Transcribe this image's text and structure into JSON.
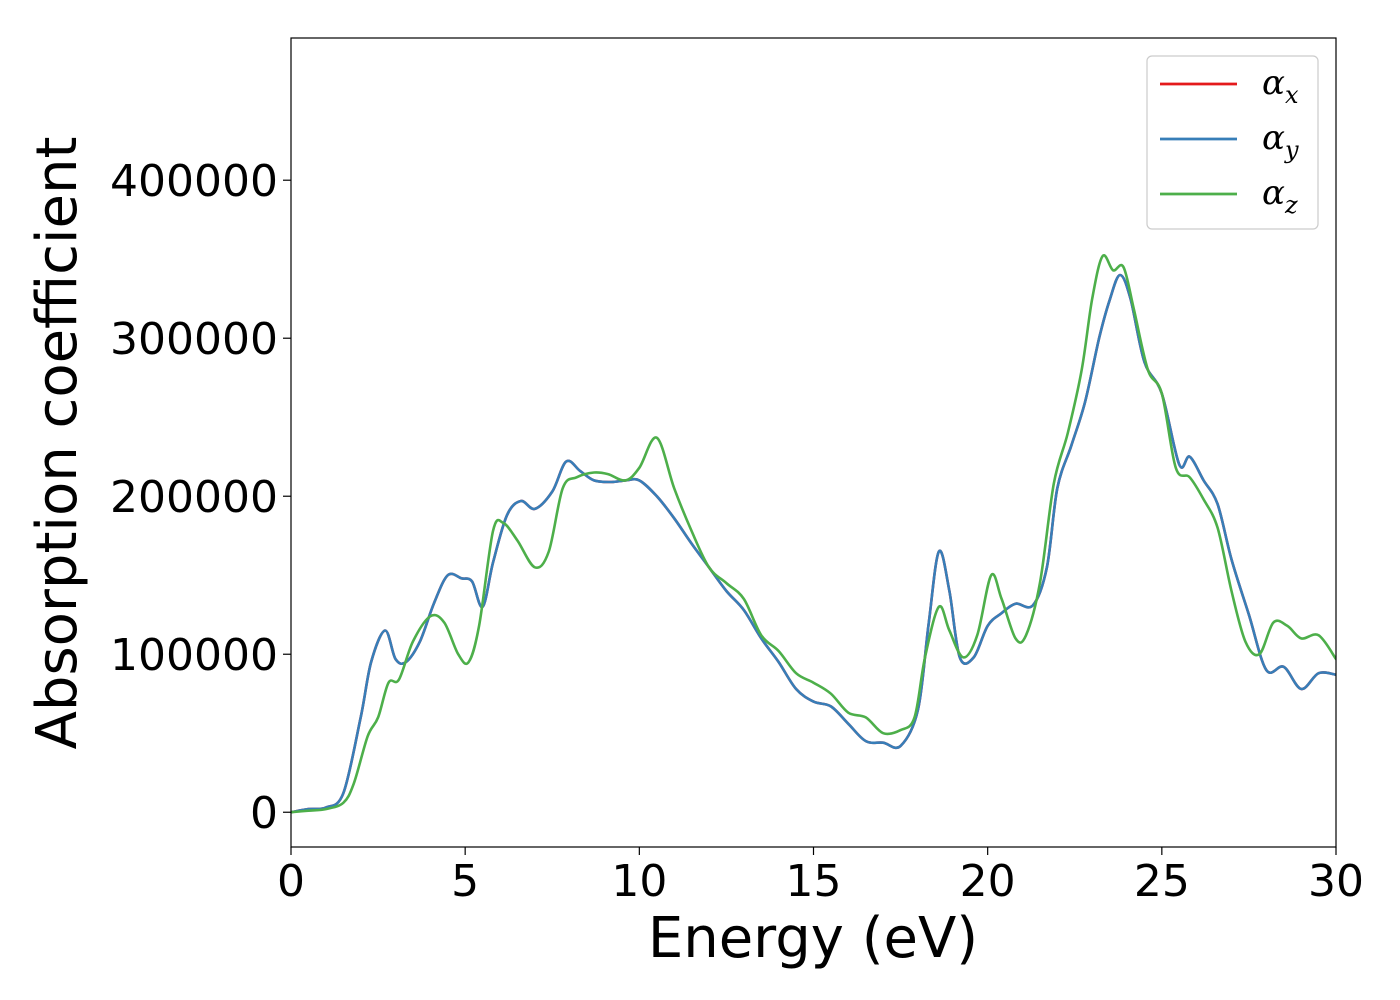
{
  "chart_data": {
    "type": "line",
    "title": "",
    "xlabel": "Energy (eV)",
    "ylabel": "Absorption coefficient",
    "xlim": [
      0,
      30
    ],
    "ylim": [
      -22000,
      490000
    ],
    "xticks": [
      0,
      5,
      10,
      15,
      20,
      25,
      30
    ],
    "yticks": [
      0,
      100000,
      200000,
      300000,
      400000
    ],
    "xtick_labels": [
      "0",
      "5",
      "10",
      "15",
      "20",
      "25",
      "30"
    ],
    "ytick_labels": [
      "0",
      "100000",
      "200000",
      "300000",
      "400000"
    ],
    "grid": false,
    "legend_position": "top-right",
    "legend": [
      {
        "base": "α",
        "sub": "x",
        "color": "#e41a1c"
      },
      {
        "base": "α",
        "sub": "y",
        "color": "#377eb8"
      },
      {
        "base": "α",
        "sub": "z",
        "color": "#4daf4a"
      }
    ],
    "series": [
      {
        "name": "αx",
        "color": "#e41a1c",
        "x": [
          0,
          0.5,
          1,
          1.5,
          2,
          2.3,
          2.7,
          3,
          3.3,
          3.7,
          4.1,
          4.5,
          4.9,
          5.2,
          5.5,
          5.8,
          6.2,
          6.6,
          7,
          7.5,
          7.9,
          8.3,
          8.7,
          9.2,
          9.6,
          10,
          10.5,
          11,
          11.5,
          12,
          12.5,
          13,
          13.5,
          14,
          14.5,
          15,
          15.5,
          16,
          16.5,
          17,
          17.5,
          18,
          18.3,
          18.6,
          18.9,
          19.2,
          19.6,
          20,
          20.4,
          20.8,
          21.3,
          21.7,
          22,
          22.4,
          22.8,
          23.2,
          23.5,
          23.8,
          24.1,
          24.5,
          25,
          25.5,
          25.8,
          26.2,
          26.6,
          27,
          27.5,
          28,
          28.5,
          29,
          29.5,
          30
        ],
        "y": [
          0,
          2000,
          3000,
          12000,
          60000,
          95000,
          115000,
          97000,
          95000,
          108000,
          132000,
          150000,
          148000,
          146000,
          130000,
          158000,
          188000,
          197000,
          192000,
          203000,
          222000,
          216000,
          210000,
          209000,
          210000,
          210000,
          200000,
          186000,
          170000,
          155000,
          140000,
          128000,
          110000,
          95000,
          78000,
          70000,
          67000,
          56000,
          45000,
          44000,
          42000,
          65000,
          118000,
          165000,
          140000,
          98000,
          98000,
          118000,
          126000,
          132000,
          131000,
          155000,
          205000,
          232000,
          260000,
          300000,
          324000,
          340000,
          325000,
          285000,
          265000,
          220000,
          225000,
          210000,
          195000,
          160000,
          125000,
          90000,
          92000,
          78000,
          88000,
          87000
        ]
      },
      {
        "name": "αy",
        "color": "#377eb8",
        "x": [
          0,
          0.5,
          1,
          1.5,
          2,
          2.3,
          2.7,
          3,
          3.3,
          3.7,
          4.1,
          4.5,
          4.9,
          5.2,
          5.5,
          5.8,
          6.2,
          6.6,
          7,
          7.5,
          7.9,
          8.3,
          8.7,
          9.2,
          9.6,
          10,
          10.5,
          11,
          11.5,
          12,
          12.5,
          13,
          13.5,
          14,
          14.5,
          15,
          15.5,
          16,
          16.5,
          17,
          17.5,
          18,
          18.3,
          18.6,
          18.9,
          19.2,
          19.6,
          20,
          20.4,
          20.8,
          21.3,
          21.7,
          22,
          22.4,
          22.8,
          23.2,
          23.5,
          23.8,
          24.1,
          24.5,
          25,
          25.5,
          25.8,
          26.2,
          26.6,
          27,
          27.5,
          28,
          28.5,
          29,
          29.5,
          30
        ],
        "y": [
          0,
          2000,
          3000,
          12000,
          60000,
          95000,
          115000,
          97000,
          95000,
          108000,
          132000,
          150000,
          148000,
          146000,
          130000,
          158000,
          188000,
          197000,
          192000,
          203000,
          222000,
          216000,
          210000,
          209000,
          210000,
          210000,
          200000,
          186000,
          170000,
          155000,
          140000,
          128000,
          110000,
          95000,
          78000,
          70000,
          67000,
          56000,
          45000,
          44000,
          42000,
          65000,
          118000,
          165000,
          140000,
          98000,
          98000,
          118000,
          126000,
          132000,
          131000,
          155000,
          205000,
          232000,
          260000,
          300000,
          324000,
          340000,
          325000,
          285000,
          265000,
          220000,
          225000,
          210000,
          195000,
          160000,
          125000,
          90000,
          92000,
          78000,
          88000,
          87000
        ]
      },
      {
        "name": "αz",
        "color": "#4daf4a",
        "x": [
          0,
          0.5,
          1,
          1.5,
          1.8,
          2.2,
          2.5,
          2.8,
          3.1,
          3.5,
          4,
          4.4,
          4.8,
          5.1,
          5.4,
          5.8,
          6.1,
          6.5,
          7,
          7.4,
          7.8,
          8.2,
          8.7,
          9.1,
          9.6,
          10,
          10.5,
          11,
          11.5,
          12,
          12.5,
          13,
          13.5,
          14,
          14.5,
          15,
          15.5,
          16,
          16.5,
          17,
          17.5,
          17.9,
          18.2,
          18.6,
          18.9,
          19.3,
          19.7,
          20.1,
          20.4,
          20.8,
          21.1,
          21.5,
          21.9,
          22.3,
          22.7,
          23,
          23.3,
          23.6,
          23.9,
          24.2,
          24.6,
          25,
          25.4,
          25.8,
          26.2,
          26.6,
          27,
          27.4,
          27.8,
          28.2,
          28.6,
          29,
          29.5,
          30
        ],
        "y": [
          0,
          1000,
          2000,
          6000,
          18000,
          48000,
          60000,
          82000,
          84000,
          108000,
          124000,
          120000,
          100000,
          95000,
          118000,
          178000,
          183000,
          172000,
          155000,
          165000,
          205000,
          212000,
          215000,
          214000,
          210000,
          218000,
          237000,
          205000,
          178000,
          155000,
          145000,
          135000,
          112000,
          102000,
          88000,
          82000,
          75000,
          63000,
          60000,
          50000,
          52000,
          60000,
          98000,
          130000,
          115000,
          98000,
          112000,
          150000,
          135000,
          110000,
          112000,
          145000,
          208000,
          240000,
          280000,
          325000,
          352000,
          343000,
          345000,
          318000,
          280000,
          265000,
          218000,
          212000,
          198000,
          180000,
          140000,
          108000,
          100000,
          120000,
          118000,
          110000,
          112000,
          97000
        ]
      }
    ]
  }
}
